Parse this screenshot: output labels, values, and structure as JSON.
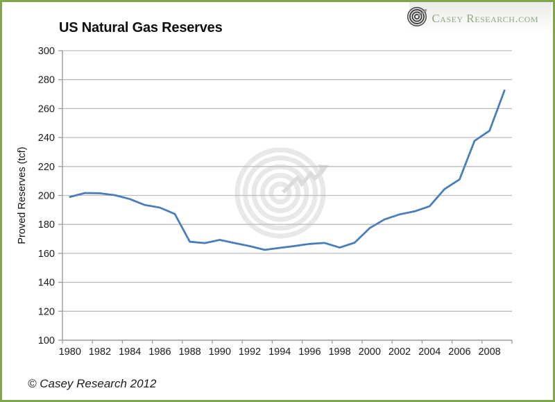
{
  "header": {
    "title": "US Natural Gas Reserves",
    "logo_text": "Casey Research.com"
  },
  "footer": {
    "copyright": "© Casey Research 2012"
  },
  "colors": {
    "frame_border": "#7ea64b",
    "line": "#4a7ebb",
    "gridline": "#bdbdbd",
    "axis": "#9b9b9b",
    "label": "#1a1a1a",
    "logo_text": "#8fa981",
    "watermark_ring": "#e8e8e8",
    "watermark_arrow": "#dcdcdc"
  },
  "chart_data": {
    "type": "line",
    "title": "US Natural Gas Reserves",
    "xlabel": "",
    "ylabel": "Proved Reserves (tcf)",
    "ylim": [
      100,
      300
    ],
    "ytick_interval": 20,
    "xtick_labels": [
      "1980",
      "1982",
      "1984",
      "1986",
      "1988",
      "1990",
      "1992",
      "1994",
      "1996",
      "1998",
      "2000",
      "2002",
      "2004",
      "2006",
      "2008"
    ],
    "grid": "horizontal-only",
    "legend_position": "none",
    "x": [
      1980,
      1981,
      1982,
      1983,
      1984,
      1985,
      1986,
      1987,
      1988,
      1989,
      1990,
      1991,
      1992,
      1993,
      1994,
      1995,
      1996,
      1997,
      1998,
      1999,
      2000,
      2001,
      2002,
      2003,
      2004,
      2005,
      2006,
      2007,
      2008,
      2009
    ],
    "series": [
      {
        "name": "Proved Reserves",
        "values": [
          199.0,
          201.7,
          201.5,
          200.2,
          197.5,
          193.4,
          191.6,
          187.2,
          168.0,
          167.1,
          169.3,
          167.1,
          165.0,
          162.4,
          163.8,
          165.1,
          166.5,
          167.2,
          164.0,
          167.4,
          177.4,
          183.5,
          186.9,
          189.0,
          192.5,
          204.4,
          211.1,
          237.7,
          244.7,
          272.5
        ]
      }
    ]
  }
}
